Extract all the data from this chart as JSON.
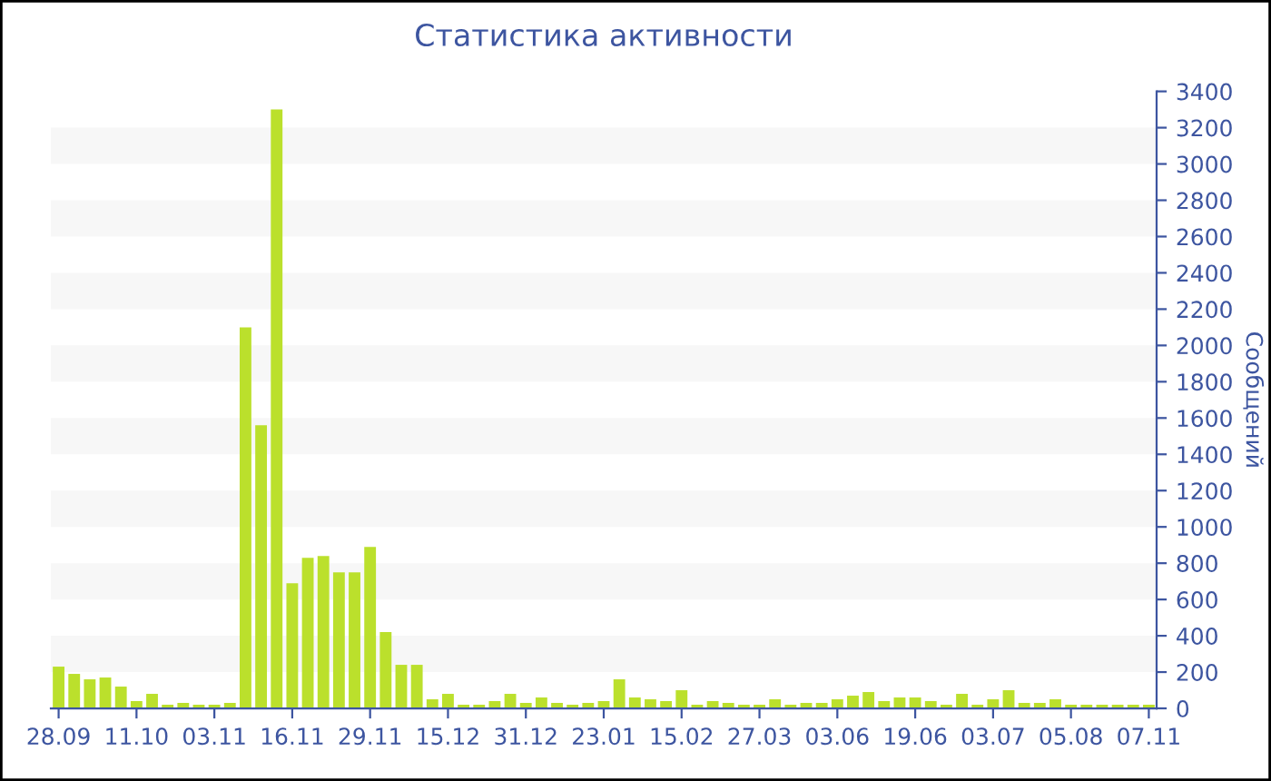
{
  "chart_data": {
    "type": "bar",
    "title": "Статистика активности",
    "ylabel": "Сообщений",
    "categories": [
      "28.09",
      null,
      null,
      null,
      null,
      "11.10",
      null,
      null,
      null,
      null,
      "03.11",
      null,
      null,
      null,
      null,
      "16.11",
      null,
      null,
      null,
      null,
      "29.11",
      null,
      null,
      null,
      null,
      "15.12",
      null,
      null,
      null,
      null,
      "31.12",
      null,
      null,
      null,
      null,
      "23.01",
      null,
      null,
      null,
      null,
      "15.02",
      null,
      null,
      null,
      null,
      "27.03",
      null,
      null,
      null,
      null,
      "03.06",
      null,
      null,
      null,
      null,
      "19.06",
      null,
      null,
      null,
      null,
      "03.07",
      null,
      null,
      null,
      null,
      "05.08",
      null,
      null,
      null,
      null,
      "07.11"
    ],
    "values": [
      230,
      190,
      160,
      170,
      120,
      40,
      80,
      20,
      30,
      20,
      20,
      30,
      2100,
      1560,
      3300,
      690,
      830,
      840,
      750,
      750,
      890,
      420,
      240,
      240,
      50,
      80,
      20,
      20,
      40,
      80,
      30,
      60,
      30,
      20,
      30,
      40,
      160,
      60,
      50,
      40,
      100,
      20,
      40,
      30,
      20,
      20,
      50,
      20,
      30,
      30,
      50,
      70,
      90,
      40,
      60,
      60,
      40,
      20,
      80,
      20,
      50,
      100,
      30,
      30,
      50,
      20,
      20,
      20,
      20,
      20,
      20
    ],
    "color": "#bbe02c",
    "ylim": [
      0,
      3400
    ],
    "yticks": [
      0,
      200,
      400,
      600,
      800,
      1000,
      1200,
      1400,
      1600,
      1800,
      2000,
      2200,
      2400,
      2600,
      2800,
      3000,
      3200,
      3400
    ]
  }
}
